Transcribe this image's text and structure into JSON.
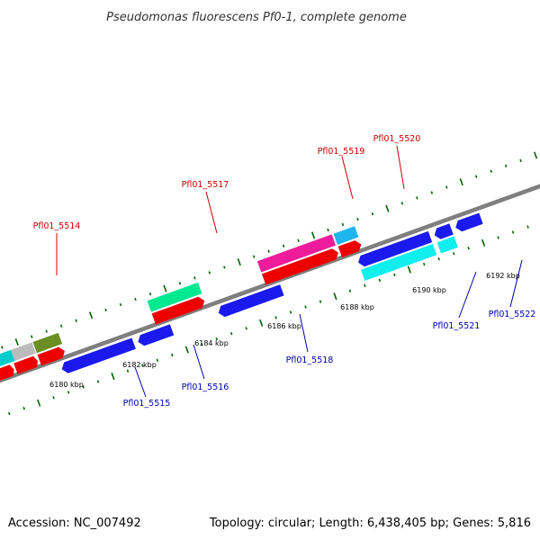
{
  "title": "Pseudomonas fluorescens Pf0-1, complete genome",
  "footer": {
    "accession": "Accession: NC_007492",
    "summary": "Topology: circular; Length: 6,438,405 bp; Genes: 5,816"
  },
  "ruler": {
    "tick_labels": [
      "6180 kbp",
      "6182 kbp",
      "6184 kbp",
      "6186 kbp",
      "6188 kbp",
      "6190 kbp",
      "6192 kbp"
    ]
  },
  "gene_labels": {
    "forward": [
      "Pfl01_5514",
      "Pfl01_5517",
      "Pfl01_5519",
      "Pfl01_5520"
    ],
    "reverse": [
      "Pfl01_5515",
      "Pfl01_5516",
      "Pfl01_5518",
      "Pfl01_5521",
      "Pfl01_5522"
    ]
  },
  "colors": {
    "backbone": "#808080",
    "forward_tick": "#006400",
    "forward_gene": "#ee0000",
    "reverse_gene": "#1a1aee",
    "forward_label": "#cc0000",
    "reverse_label": "#0000aa",
    "feature_cyan": "#00cccc",
    "feature_gray": "#bbbbbb",
    "feature_olive": "#6b8e23",
    "feature_green": "#00e890",
    "feature_magenta": "#ee1c9a",
    "feature_skyblue": "#20b4ee",
    "feature_aqua": "#10eeee"
  }
}
